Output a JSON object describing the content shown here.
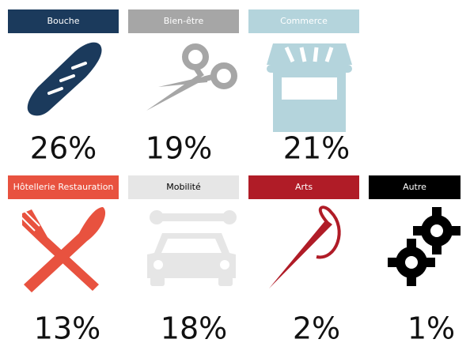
{
  "items": [
    {
      "label": "Bouche",
      "percent": "26%",
      "color": "#1b3a5c",
      "text_color": "#ffffff"
    },
    {
      "label": "Bien-être",
      "percent": "19%",
      "color": "#a6a6a6",
      "text_color": "#ffffff"
    },
    {
      "label": "Commerce",
      "percent": "21%",
      "color": "#b4d4dc",
      "text_color": "#ffffff"
    },
    {
      "label": "Hôtellerie Restauration",
      "percent": "13%",
      "color": "#e8523f",
      "text_color": "#ffffff"
    },
    {
      "label": "Mobilité",
      "percent": "18%",
      "color": "#e6e6e6",
      "text_color": "#000000"
    },
    {
      "label": "Arts",
      "percent": "2%",
      "color": "#b01c27",
      "text_color": "#ffffff"
    },
    {
      "label": "Autre",
      "percent": "1%",
      "color": "#000000",
      "text_color": "#ffffff"
    }
  ]
}
